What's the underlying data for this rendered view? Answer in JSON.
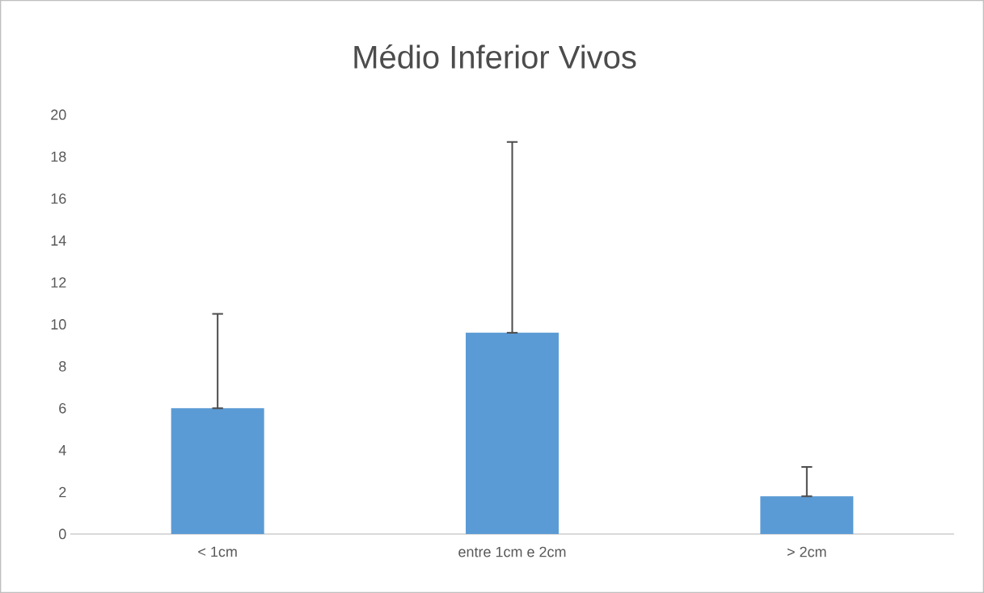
{
  "chart_data": {
    "type": "bar",
    "title": "Médio Inferior Vivos",
    "categories": [
      "< 1cm",
      "entre 1cm e 2cm",
      "> 2cm"
    ],
    "values": [
      6,
      9.6,
      1.8
    ],
    "errors": [
      [
        6,
        10.5
      ],
      [
        9.6,
        18.7
      ],
      [
        1.8,
        3.2
      ]
    ],
    "color": "#5b9bd5",
    "ylim": [
      0,
      20
    ],
    "yticks": [
      0,
      2,
      4,
      6,
      8,
      10,
      12,
      14,
      16,
      18,
      20
    ]
  }
}
